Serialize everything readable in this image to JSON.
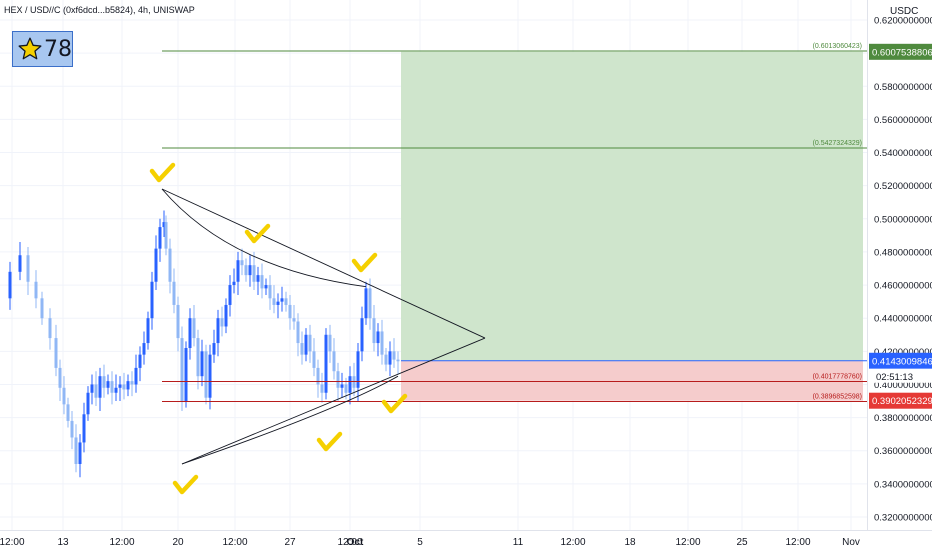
{
  "header": {
    "symbol": "HEX / USD//C (0xf6dcd...b5824), 4h, UNISWAP",
    "star_count": "78",
    "axis_unit": "USDC"
  },
  "colors": {
    "candle_up": "#2962ff",
    "candle_down": "#90b7f5",
    "profit_zone": "#cfe5cc",
    "loss_zone": "#f5cccc",
    "target_line": "#4f8a3e",
    "stop_line": "#b71c1c",
    "current_price": "#2962ff",
    "check_marks": "#f5d000"
  },
  "chart_data": {
    "type": "candlestick",
    "y_axis": {
      "ticks": [
        "0.6200000000",
        "0.6000000000",
        "0.5800000000",
        "0.5600000000",
        "0.5400000000",
        "0.5200000000",
        "0.5000000000",
        "0.4800000000",
        "0.4600000000",
        "0.4400000000",
        "0.4200000000",
        "0.4000000000",
        "0.3800000000",
        "0.3600000000",
        "0.3400000000",
        "0.3200000000"
      ],
      "range": [
        0.316,
        0.625
      ]
    },
    "x_axis": {
      "ticks": [
        "12:00",
        "13",
        "12:00",
        "20",
        "12:00",
        "27",
        "12:00",
        "Oct",
        "5",
        "11",
        "12:00",
        "18",
        "12:00",
        "25",
        "12:00",
        "Nov"
      ]
    },
    "price_labels": {
      "target_2": "0.6007538806",
      "current": "0.4143009846",
      "countdown": "02:51:13",
      "stop": "0.3902052329"
    },
    "levels": [
      {
        "label": "(0.6013060423)",
        "value": 0.6013
      },
      {
        "label": "(0.5427324329)",
        "value": 0.5427
      },
      {
        "label": "(0.4017778760)",
        "value": 0.4018
      },
      {
        "label": "(0.3896852598)",
        "value": 0.3897
      }
    ],
    "position": {
      "entry": 0.4143,
      "target": 0.6008,
      "stop": 0.3902
    },
    "triangle": {
      "upper_start": 0.518,
      "lower_start": 0.352,
      "apex": 0.428
    }
  }
}
